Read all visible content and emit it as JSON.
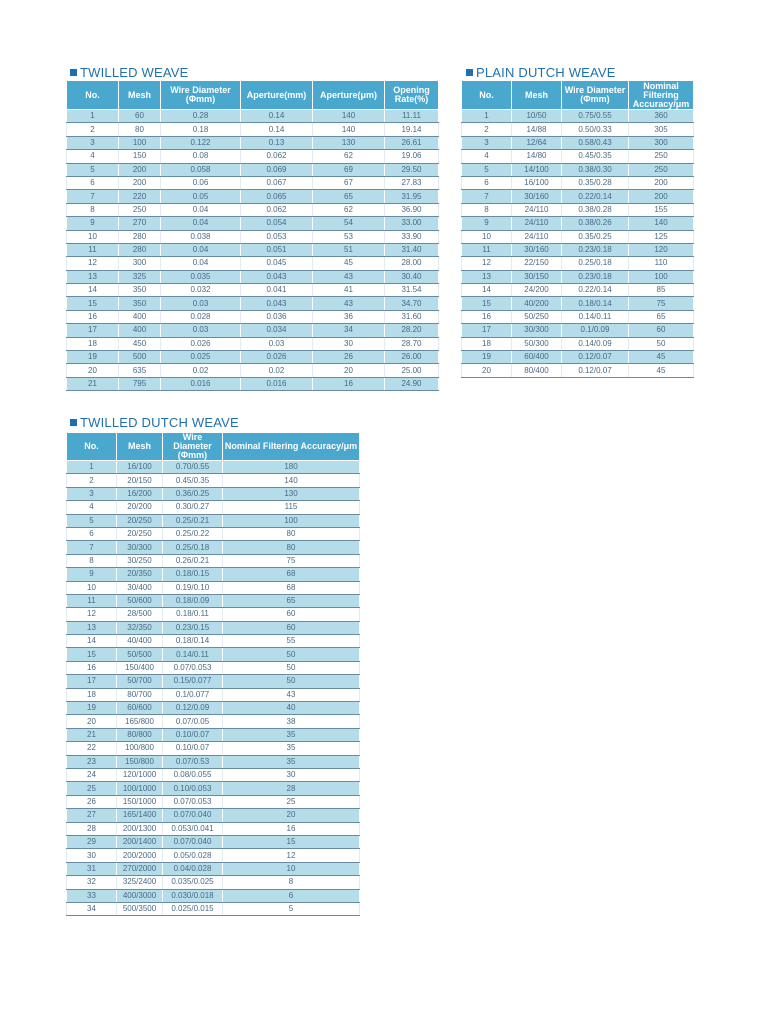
{
  "twilled": {
    "title": "TWILLED WEAVE",
    "headers": [
      "No.",
      "Mesh",
      "Wire Diameter (Φmm)",
      "Aperture(mm)",
      "Aperture(μm)",
      "Opening Rate(%)"
    ],
    "rows": [
      [
        "1",
        "60",
        "0.28",
        "0.14",
        "140",
        "11.11"
      ],
      [
        "2",
        "80",
        "0.18",
        "0.14",
        "140",
        "19.14"
      ],
      [
        "3",
        "100",
        "0.122",
        "0.13",
        "130",
        "26.61"
      ],
      [
        "4",
        "150",
        "0.08",
        "0.062",
        "62",
        "19.06"
      ],
      [
        "5",
        "200",
        "0.058",
        "0.069",
        "69",
        "29.50"
      ],
      [
        "6",
        "200",
        "0.06",
        "0.067",
        "67",
        "27.83"
      ],
      [
        "7",
        "220",
        "0.05",
        "0.065",
        "65",
        "31.95"
      ],
      [
        "8",
        "250",
        "0.04",
        "0.062",
        "62",
        "36.90"
      ],
      [
        "9",
        "270",
        "0.04",
        "0.054",
        "54",
        "33.00"
      ],
      [
        "10",
        "280",
        "0.038",
        "0.053",
        "53",
        "33.90"
      ],
      [
        "11",
        "280",
        "0.04",
        "0.051",
        "51",
        "31.40"
      ],
      [
        "12",
        "300",
        "0.04",
        "0.045",
        "45",
        "28.00"
      ],
      [
        "13",
        "325",
        "0.035",
        "0.043",
        "43",
        "30.40"
      ],
      [
        "14",
        "350",
        "0.032",
        "0.041",
        "41",
        "31.54"
      ],
      [
        "15",
        "350",
        "0.03",
        "0.043",
        "43",
        "34.70"
      ],
      [
        "16",
        "400",
        "0.028",
        "0.036",
        "36",
        "31.60"
      ],
      [
        "17",
        "400",
        "0.03",
        "0.034",
        "34",
        "28.20"
      ],
      [
        "18",
        "450",
        "0.026",
        "0.03",
        "30",
        "28.70"
      ],
      [
        "19",
        "500",
        "0.025",
        "0.026",
        "26",
        "26.00"
      ],
      [
        "20",
        "635",
        "0.02",
        "0.02",
        "20",
        "25.00"
      ],
      [
        "21",
        "795",
        "0.016",
        "0.016",
        "16",
        "24.90"
      ]
    ]
  },
  "plain_dutch": {
    "title": "PLAIN DUTCH WEAVE",
    "headers": [
      "No.",
      "Mesh",
      "Wire Diameter (Φmm)",
      "Nominal Filtering Accuracy/μm"
    ],
    "rows": [
      [
        "1",
        "10/50",
        "0.75/0.55",
        "360"
      ],
      [
        "2",
        "14/88",
        "0.50/0.33",
        "305"
      ],
      [
        "3",
        "12/64",
        "0.58/0.43",
        "300"
      ],
      [
        "4",
        "14/80",
        "0.45/0.35",
        "250"
      ],
      [
        "5",
        "14/100",
        "0.38/0.30",
        "250"
      ],
      [
        "6",
        "16/100",
        "0.35/0.28",
        "200"
      ],
      [
        "7",
        "30/160",
        "0.22/0.14",
        "200"
      ],
      [
        "8",
        "24/110",
        "0.38/0.28",
        "155"
      ],
      [
        "9",
        "24/110",
        "0.38/0.26",
        "140"
      ],
      [
        "10",
        "24/110",
        "0.35/0.25",
        "125"
      ],
      [
        "11",
        "30/160",
        "0.23/0.18",
        "120"
      ],
      [
        "12",
        "22/150",
        "0.25/0.18",
        "110"
      ],
      [
        "13",
        "30/150",
        "0.23/0.18",
        "100"
      ],
      [
        "14",
        "24/200",
        "0.22/0.14",
        "85"
      ],
      [
        "15",
        "40/200",
        "0.18/0.14",
        "75"
      ],
      [
        "16",
        "50/250",
        "0.14/0.11",
        "65"
      ],
      [
        "17",
        "30/300",
        "0.1/0.09",
        "60"
      ],
      [
        "18",
        "50/300",
        "0.14/0.09",
        "50"
      ],
      [
        "19",
        "60/400",
        "0.12/0.07",
        "45"
      ],
      [
        "20",
        "80/400",
        "0.12/0.07",
        "45"
      ]
    ]
  },
  "twilled_dutch": {
    "title": "TWILLED DUTCH WEAVE",
    "headers": [
      "No.",
      "Mesh",
      "Wire Diameter (Φmm)",
      "Nominal Filtering Accuracy/μm"
    ],
    "rows": [
      [
        "1",
        "16/100",
        "0.70/0.55",
        "180"
      ],
      [
        "2",
        "20/150",
        "0.45/0.35",
        "140"
      ],
      [
        "3",
        "16/200",
        "0.36/0.25",
        "130"
      ],
      [
        "4",
        "20/200",
        "0.30/0.27",
        "115"
      ],
      [
        "5",
        "20/250",
        "0.25/0.21",
        "100"
      ],
      [
        "6",
        "20/250",
        "0.25/0.22",
        "80"
      ],
      [
        "7",
        "30/300",
        "0.25/0.18",
        "80"
      ],
      [
        "8",
        "30/250",
        "0.26/0.21",
        "75"
      ],
      [
        "9",
        "20/350",
        "0.18/0.15",
        "68"
      ],
      [
        "10",
        "30/400",
        "0.19/0.10",
        "68"
      ],
      [
        "11",
        "50/600",
        "0.18/0.09",
        "65"
      ],
      [
        "12",
        "28/500",
        "0.18/0.11",
        "60"
      ],
      [
        "13",
        "32/350",
        "0.23/0.15",
        "60"
      ],
      [
        "14",
        "40/400",
        "0.18/0.14",
        "55"
      ],
      [
        "15",
        "50/500",
        "0.14/0.11",
        "50"
      ],
      [
        "16",
        "150/400",
        "0.07/0.053",
        "50"
      ],
      [
        "17",
        "50/700",
        "0.15/0.077",
        "50"
      ],
      [
        "18",
        "80/700",
        "0.1/0.077",
        "43"
      ],
      [
        "19",
        "60/600",
        "0.12/0.09",
        "40"
      ],
      [
        "20",
        "165/800",
        "0.07/0.05",
        "38"
      ],
      [
        "21",
        "80/800",
        "0.10/0.07",
        "35"
      ],
      [
        "22",
        "100/800",
        "0.10/0.07",
        "35"
      ],
      [
        "23",
        "150/800",
        "0.07/0.53",
        "35"
      ],
      [
        "24",
        "120/1000",
        "0.08/0.055",
        "30"
      ],
      [
        "25",
        "100/1000",
        "0.10/0.053",
        "28"
      ],
      [
        "26",
        "150/1000",
        "0.07/0.053",
        "25"
      ],
      [
        "27",
        "165/1400",
        "0.07/0.040",
        "20"
      ],
      [
        "28",
        "200/1300",
        "0.053/0.041",
        "16"
      ],
      [
        "29",
        "200/1400",
        "0.07/0.040",
        "15"
      ],
      [
        "30",
        "200/2000",
        "0.05/0.028",
        "12"
      ],
      [
        "31",
        "270/2000",
        "0.04/0.028",
        "10"
      ],
      [
        "32",
        "325/2400",
        "0.035/0.025",
        "8"
      ],
      [
        "33",
        "400/3000",
        "0.030/0.018",
        "6"
      ],
      [
        "34",
        "500/3500",
        "0.025/0.015",
        "5"
      ]
    ]
  },
  "colors": {
    "header_bg": "#4aa8cf",
    "stripe_bg": "#b4dce9",
    "title_color": "#1f6fb0"
  }
}
